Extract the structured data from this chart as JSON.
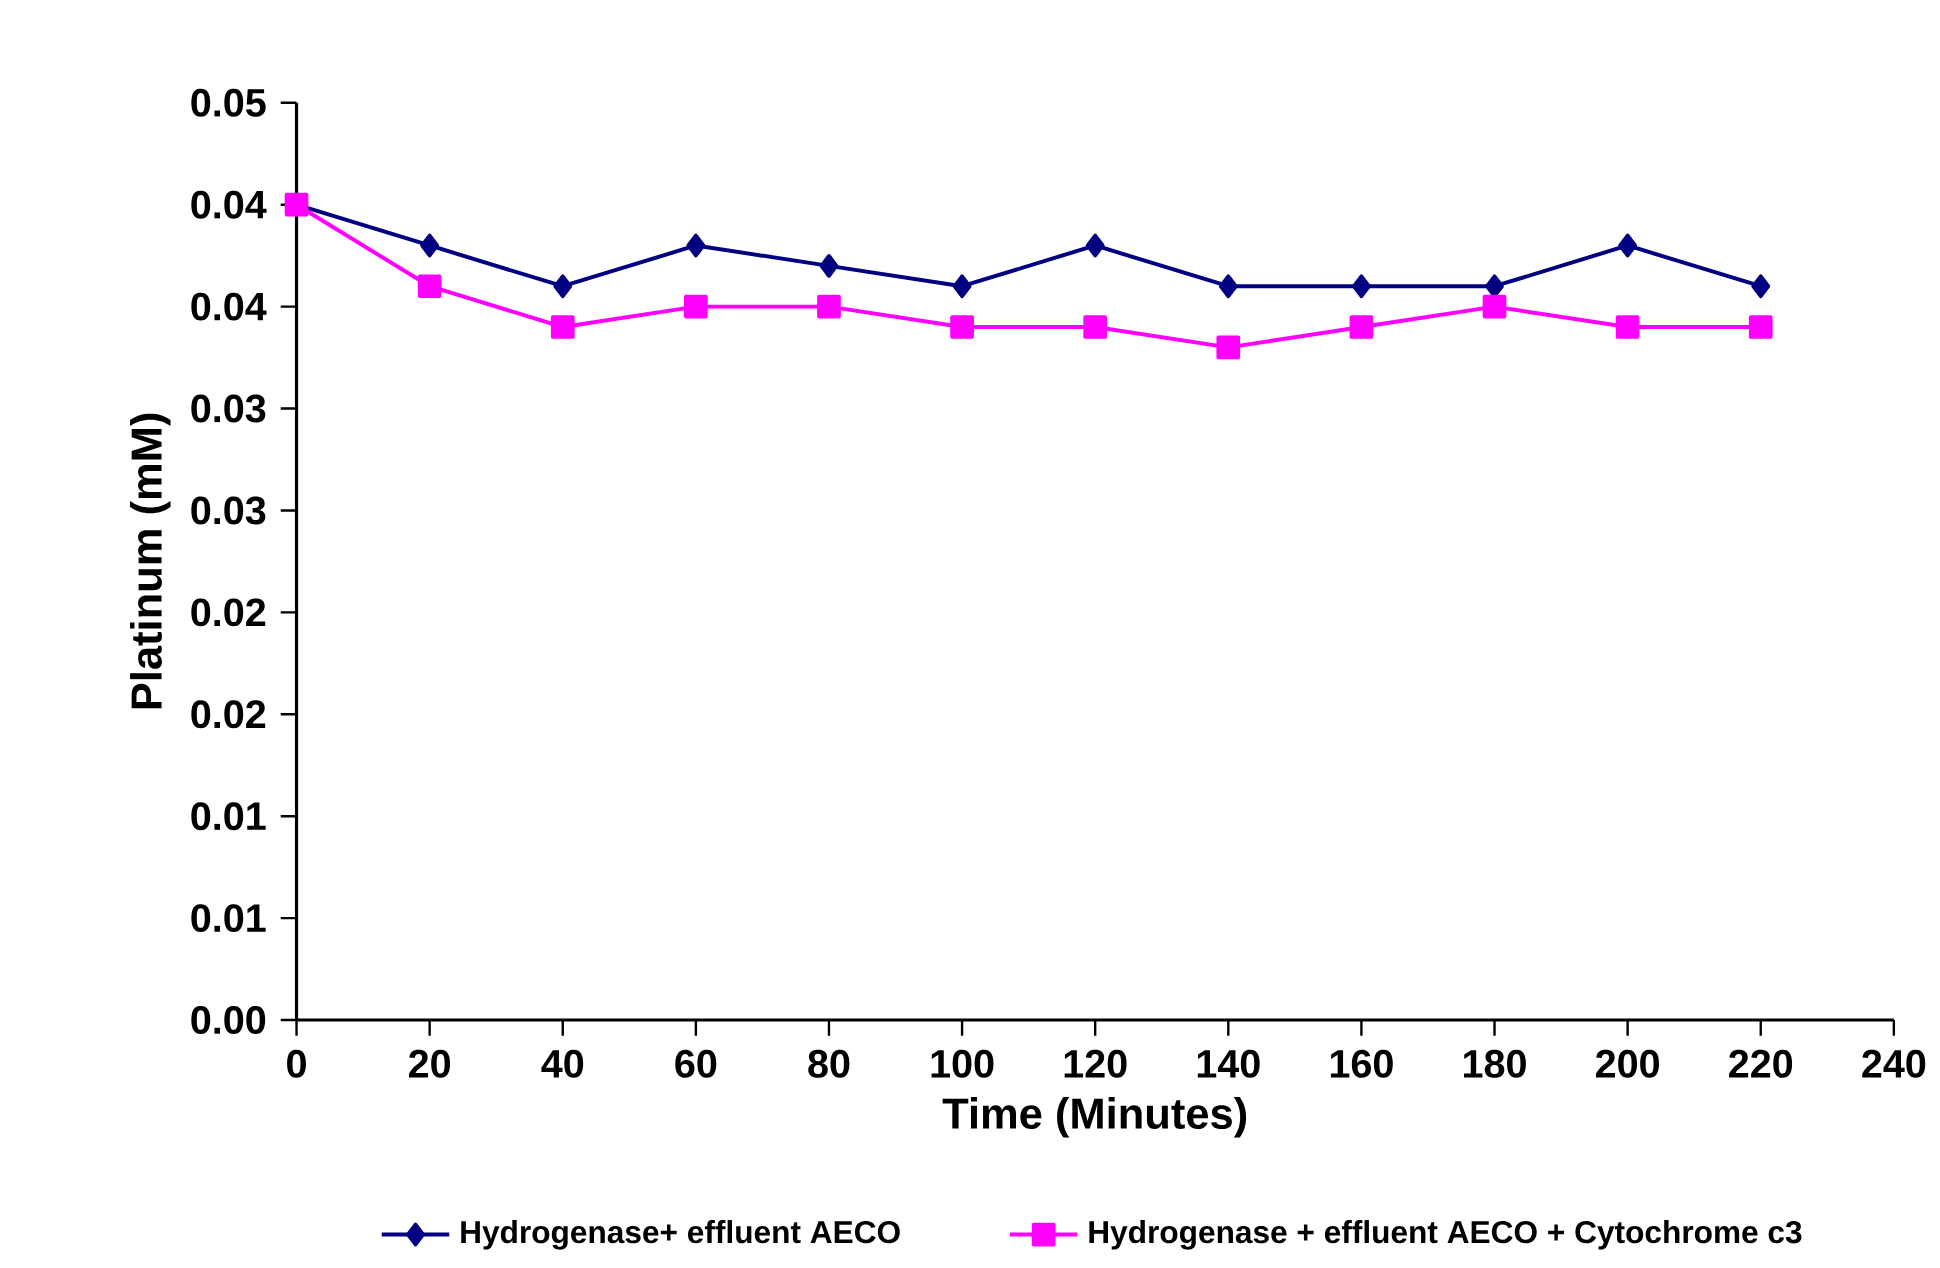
{
  "chart_data": {
    "type": "line",
    "xlabel": "Time (Minutes)",
    "ylabel": "Platinum (mM)",
    "x": [
      0,
      20,
      40,
      60,
      80,
      100,
      120,
      140,
      160,
      180,
      200,
      220
    ],
    "xlim": [
      0,
      240
    ],
    "xticks": [
      0,
      20,
      40,
      60,
      80,
      100,
      120,
      140,
      160,
      180,
      200,
      220,
      240
    ],
    "ylim": [
      0,
      0.045
    ],
    "yticks": [
      {
        "value": 0,
        "label": "0.00"
      },
      {
        "value": 0.005,
        "label": "0.01"
      },
      {
        "value": 0.01,
        "label": "0.01"
      },
      {
        "value": 0.015,
        "label": "0.02"
      },
      {
        "value": 0.02,
        "label": "0.02"
      },
      {
        "value": 0.025,
        "label": "0.03"
      },
      {
        "value": 0.03,
        "label": "0.03"
      },
      {
        "value": 0.035,
        "label": "0.04"
      },
      {
        "value": 0.04,
        "label": "0.04"
      },
      {
        "value": 0.045,
        "label": "0.05"
      }
    ],
    "legend": "bottom",
    "grid": false,
    "line_style": "solid",
    "series": [
      {
        "name": "Hydrogenase+ effluent AECO",
        "color": "#000080",
        "marker": "diamond",
        "values": [
          0.04,
          0.038,
          0.036,
          0.038,
          0.037,
          0.036,
          0.038,
          0.036,
          0.036,
          0.036,
          0.038,
          0.036
        ]
      },
      {
        "name": "Hydrogenase + effluent AECO + Cytochrome c3",
        "color": "#ff00ff",
        "marker": "square",
        "values": [
          0.04,
          0.036,
          0.034,
          0.035,
          0.035,
          0.034,
          0.034,
          0.033,
          0.034,
          0.035,
          0.034,
          0.034
        ]
      }
    ]
  }
}
